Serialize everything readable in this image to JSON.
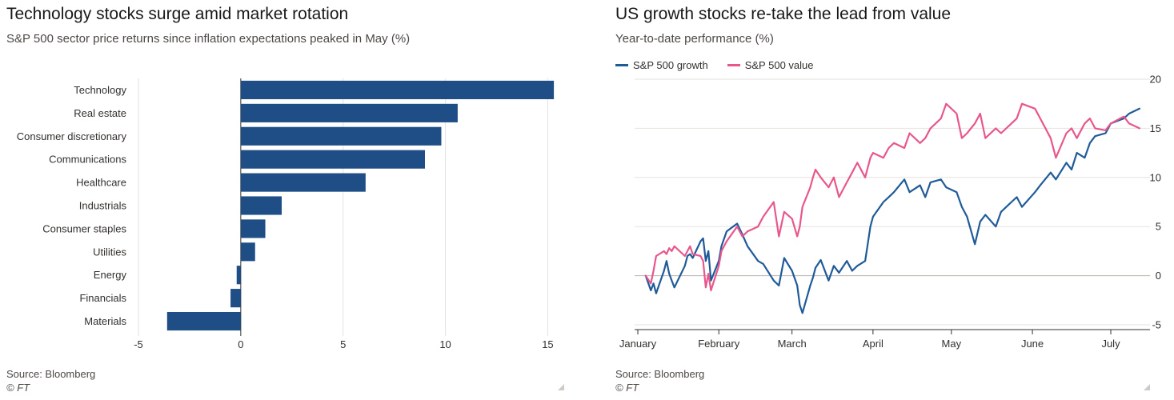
{
  "left": {
    "title": "Technology stocks surge amid market rotation",
    "subtitle": "S&P 500 sector price returns since inflation expectations peaked in May (%)",
    "source": "Source: Bloomberg",
    "copyright": "© FT"
  },
  "right": {
    "title": "US growth stocks re-take the lead from value",
    "subtitle": "Year-to-date performance (%)",
    "source": "Source: Bloomberg",
    "copyright": "© FT"
  },
  "colors": {
    "bar": "#1f4e87",
    "growth": "#1f5a99",
    "value": "#e8578c",
    "grid": "#e6e2df",
    "axis": "#33302e"
  },
  "chart_data": [
    {
      "type": "bar",
      "orientation": "horizontal",
      "categories": [
        "Technology",
        "Real estate",
        "Consumer discretionary",
        "Communications",
        "Healthcare",
        "Industrials",
        "Consumer staples",
        "Utilities",
        "Energy",
        "Financials",
        "Materials"
      ],
      "values": [
        15.3,
        10.6,
        9.8,
        9.0,
        6.1,
        2.0,
        1.2,
        0.7,
        -0.2,
        -0.5,
        -3.6
      ],
      "xlim": [
        -5,
        16
      ],
      "xticks": [
        -5,
        0,
        5,
        10,
        15
      ],
      "grid": true
    },
    {
      "type": "line",
      "x": [
        "2021-01-04",
        "2021-01-06",
        "2021-01-07",
        "2021-01-08",
        "2021-01-11",
        "2021-01-12",
        "2021-01-13",
        "2021-01-14",
        "2021-01-15",
        "2021-01-19",
        "2021-01-20",
        "2021-01-21",
        "2021-01-22",
        "2021-01-25",
        "2021-01-26",
        "2021-01-27",
        "2021-01-28",
        "2021-01-29",
        "2021-02-01",
        "2021-02-02",
        "2021-02-04",
        "2021-02-08",
        "2021-02-10",
        "2021-02-12",
        "2021-02-16",
        "2021-02-18",
        "2021-02-22",
        "2021-02-24",
        "2021-02-26",
        "2021-03-01",
        "2021-03-03",
        "2021-03-04",
        "2021-03-05",
        "2021-03-08",
        "2021-03-09",
        "2021-03-10",
        "2021-03-12",
        "2021-03-15",
        "2021-03-17",
        "2021-03-19",
        "2021-03-22",
        "2021-03-24",
        "2021-03-26",
        "2021-03-29",
        "2021-03-31",
        "2021-04-01",
        "2021-04-05",
        "2021-04-07",
        "2021-04-09",
        "2021-04-13",
        "2021-04-15",
        "2021-04-19",
        "2021-04-21",
        "2021-04-23",
        "2021-04-27",
        "2021-04-29",
        "2021-05-03",
        "2021-05-05",
        "2021-05-07",
        "2021-05-10",
        "2021-05-12",
        "2021-05-14",
        "2021-05-18",
        "2021-05-20",
        "2021-05-24",
        "2021-05-26",
        "2021-05-28",
        "2021-06-02",
        "2021-06-04",
        "2021-06-08",
        "2021-06-10",
        "2021-06-14",
        "2021-06-16",
        "2021-06-18",
        "2021-06-21",
        "2021-06-23",
        "2021-06-25",
        "2021-06-29",
        "2021-07-01",
        "2021-07-06",
        "2021-07-08",
        "2021-07-12"
      ],
      "series": [
        {
          "name": "S&P 500 growth",
          "values": [
            0,
            -1.5,
            -0.8,
            -1.8,
            0.5,
            1.5,
            0.2,
            -0.5,
            -1.2,
            1.0,
            2.0,
            2.2,
            1.8,
            3.5,
            3.8,
            1.5,
            2.5,
            -0.5,
            1.5,
            3.0,
            4.5,
            5.3,
            4.2,
            3.0,
            1.5,
            1.2,
            -0.5,
            -1.0,
            1.8,
            0.5,
            -1.0,
            -3.0,
            -3.8,
            -1.0,
            -0.2,
            0.8,
            1.6,
            -0.5,
            1.0,
            0.3,
            1.5,
            0.5,
            1.0,
            1.5,
            5.0,
            6.0,
            7.5,
            8.0,
            8.5,
            9.8,
            8.5,
            9.2,
            8.0,
            9.5,
            9.8,
            9.0,
            8.5,
            7.0,
            6.0,
            3.2,
            5.5,
            6.2,
            5.0,
            6.5,
            7.5,
            8.0,
            7.0,
            8.5,
            9.2,
            10.5,
            9.8,
            11.5,
            10.8,
            12.5,
            12.0,
            13.5,
            14.2,
            14.5,
            15.5,
            16.0,
            16.5,
            17.0
          ]
        },
        {
          "name": "S&P 500 value",
          "values": [
            0,
            -0.8,
            0.5,
            2.0,
            2.5,
            2.2,
            2.8,
            2.5,
            3.0,
            2.0,
            2.5,
            3.0,
            2.2,
            2.0,
            1.5,
            -1.2,
            0.2,
            -1.5,
            1.0,
            2.5,
            3.5,
            5.0,
            4.0,
            4.5,
            5.0,
            6.0,
            7.5,
            4.0,
            6.5,
            5.8,
            4.0,
            5.0,
            7.0,
            9.0,
            10.0,
            10.8,
            10.0,
            9.0,
            10.0,
            8.0,
            9.5,
            10.5,
            11.5,
            10.0,
            12.0,
            12.5,
            12.0,
            13.0,
            13.5,
            13.0,
            14.5,
            13.5,
            14.0,
            15.0,
            16.0,
            17.5,
            16.5,
            14.0,
            14.5,
            15.5,
            16.5,
            14.0,
            15.0,
            14.5,
            15.5,
            16.0,
            17.5,
            17.0,
            16.0,
            14.0,
            12.0,
            14.5,
            15.0,
            14.0,
            15.5,
            16.0,
            15.0,
            14.8,
            15.5,
            16.2,
            15.5,
            15.0
          ]
        }
      ],
      "x_tick_labels": [
        "January",
        "February",
        "March",
        "April",
        "May",
        "June",
        "July"
      ],
      "ylim": [
        -5,
        20
      ],
      "yticks": [
        -5,
        0,
        5,
        10,
        15,
        20
      ],
      "grid": true,
      "legend_placement": "top-left"
    }
  ]
}
